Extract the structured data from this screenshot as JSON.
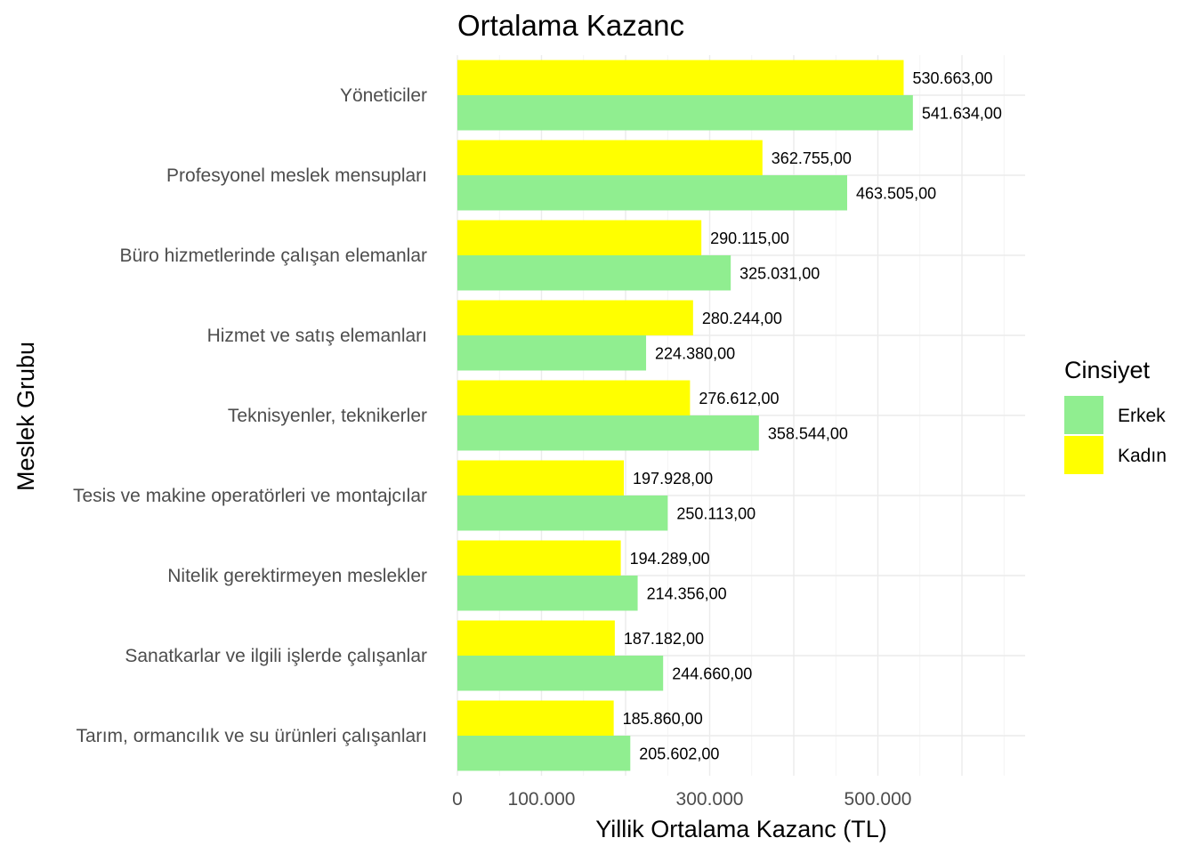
{
  "chart_data": {
    "type": "bar",
    "orientation": "horizontal",
    "title": "Ortalama Kazanc",
    "xlabel": "Yillik Ortalama Kazanc (TL)",
    "ylabel": "Meslek Grubu",
    "xlim": [
      0,
      675000
    ],
    "xticks": [
      0,
      100000,
      300000,
      500000
    ],
    "xtick_labels": [
      "0",
      "100.000",
      "300.000",
      "500.000"
    ],
    "grid": true,
    "legend": {
      "title": "Cinsiyet",
      "position": "right"
    },
    "categories": [
      "Yöneticiler",
      "Profesyonel meslek mensupları",
      "Büro hizmetlerinde çalışan elemanlar",
      "Hizmet ve satış elemanları",
      "Teknisyenler, teknikerler",
      "Tesis ve makine operatörleri ve montajcılar",
      "Nitelik gerektirmeyen meslekler",
      "Sanatkarlar ve ilgili işlerde çalışanlar",
      "Tarım, ormancılık ve su ürünleri çalışanları"
    ],
    "series": [
      {
        "name": "Erkek",
        "color": "#90ee90",
        "values": [
          541634,
          463505,
          325031,
          224380,
          358544,
          250113,
          214356,
          244660,
          205602
        ],
        "labels": [
          "541.634,00",
          "463.505,00",
          "325.031,00",
          "224.380,00",
          "358.544,00",
          "250.113,00",
          "214.356,00",
          "244.660,00",
          "205.602,00"
        ]
      },
      {
        "name": "Kadın",
        "color": "#ffff00",
        "values": [
          530663,
          362755,
          290115,
          280244,
          276612,
          197928,
          194289,
          187182,
          185860
        ],
        "labels": [
          "530.663,00",
          "362.755,00",
          "290.115,00",
          "280.244,00",
          "276.612,00",
          "197.928,00",
          "194.289,00",
          "187.182,00",
          "185.860,00"
        ]
      }
    ]
  }
}
